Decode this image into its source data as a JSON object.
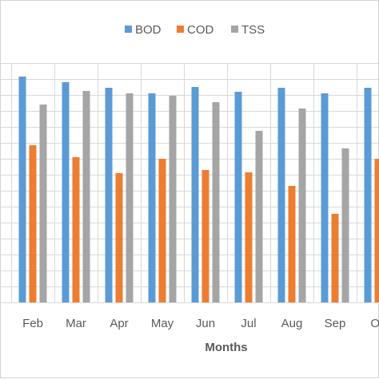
{
  "chart_data": {
    "type": "bar",
    "xlabel": "Months",
    "ylabel": "",
    "title": "",
    "legend_position": "top",
    "grid": true,
    "ylim": [
      0,
      300
    ],
    "categories": [
      "Feb",
      "Mar",
      "Apr",
      "May",
      "Jun",
      "Jul",
      "Aug",
      "Sep",
      "Oc"
    ],
    "series": [
      {
        "name": "BOD",
        "color": "#5b9bd5",
        "values": [
          283,
          276,
          269,
          262,
          270,
          264,
          269,
          262,
          269
        ]
      },
      {
        "name": "COD",
        "color": "#ed7d31",
        "values": [
          197,
          182,
          162,
          180,
          166,
          163,
          146,
          111,
          180
        ]
      },
      {
        "name": "TSS",
        "color": "#a5a5a5",
        "values": [
          248,
          265,
          262,
          259,
          251,
          215,
          243,
          193,
          0
        ]
      }
    ]
  },
  "colors": {
    "grid": "#d9d9d9",
    "axis_text": "#595959",
    "frame": "#d4d4d4"
  }
}
